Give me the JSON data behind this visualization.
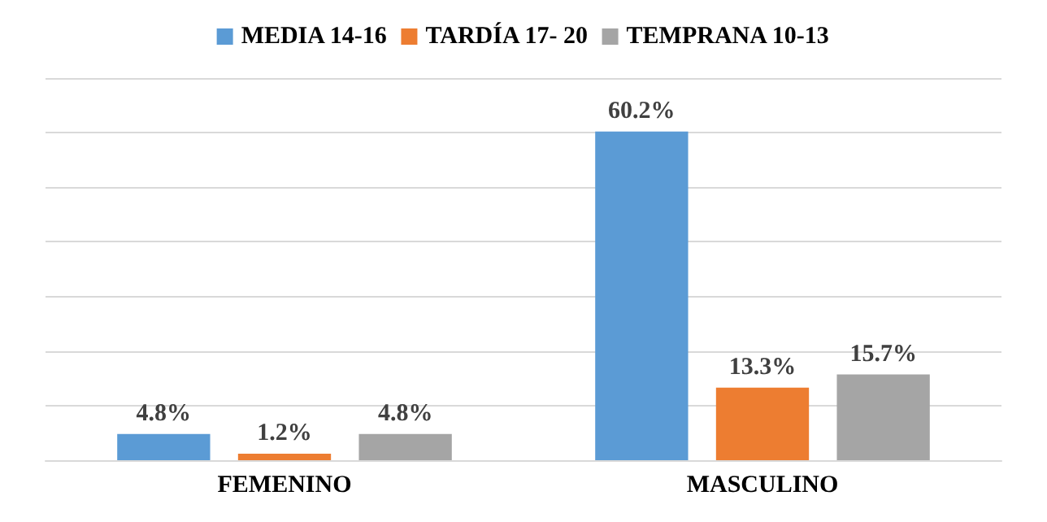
{
  "chart_data": {
    "type": "bar",
    "categories": [
      "FEMENINO",
      "MASCULINO"
    ],
    "series": [
      {
        "name": "MEDIA 14-16",
        "color": "#5b9bd5",
        "values": [
          4.8,
          60.2
        ],
        "value_labels": [
          "4.8%",
          "60.2%"
        ]
      },
      {
        "name": "TARDÍA 17- 20",
        "color": "#ed7d31",
        "values": [
          1.2,
          13.3
        ],
        "value_labels": [
          "1.2%",
          "13.3%"
        ]
      },
      {
        "name": "TEMPRANA 10-13",
        "color": "#a5a5a5",
        "values": [
          4.8,
          15.7
        ],
        "value_labels": [
          "4.8%",
          "15.7%"
        ]
      }
    ],
    "tick_labels": "x",
    "grid": "y",
    "legend": "top"
  }
}
